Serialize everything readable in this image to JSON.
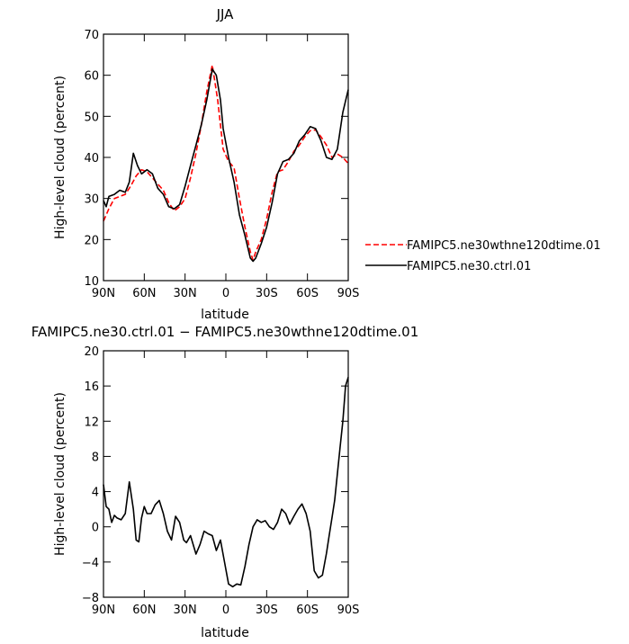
{
  "chart_data": [
    {
      "type": "line",
      "title": "JJA",
      "xlabel": "latitude",
      "ylabel": "High-level cloud (percent)",
      "xlim": [
        90,
        -90
      ],
      "ylim": [
        10,
        70
      ],
      "x_ticks": [
        90,
        60,
        30,
        0,
        -30,
        -60,
        -90
      ],
      "x_tick_labels": [
        "90N",
        "60N",
        "30N",
        "0",
        "30S",
        "60S",
        "90S"
      ],
      "y_ticks": [
        10,
        20,
        30,
        40,
        50,
        60,
        70
      ],
      "y_tick_labels": [
        "10",
        "20",
        "30",
        "40",
        "50",
        "60",
        "70"
      ],
      "grid": false,
      "legend_position": "right",
      "series": [
        {
          "name": "FAMIPC5.ne30wthne120dtime.01",
          "color": "#ff0000",
          "dash": "dashed",
          "x": [
            90,
            86,
            82,
            78,
            74,
            70,
            66,
            62,
            58,
            54,
            50,
            46,
            42,
            38,
            34,
            30,
            26,
            22,
            18,
            14,
            10,
            6,
            2,
            -2,
            -6,
            -10,
            -14,
            -18,
            -20,
            -22,
            -26,
            -30,
            -34,
            -38,
            -42,
            -46,
            -50,
            -54,
            -58,
            -62,
            -66,
            -70,
            -74,
            -78,
            -82,
            -86,
            -90
          ],
          "y": [
            24.5,
            27.5,
            30,
            30.5,
            31,
            33,
            35.5,
            37,
            36.5,
            35,
            33.5,
            32,
            29,
            27,
            28,
            30,
            35,
            41,
            48,
            56,
            62.5,
            54,
            42,
            39,
            37.5,
            30,
            23,
            17,
            15,
            17,
            20,
            25,
            31.5,
            36.5,
            37,
            39,
            41.5,
            43,
            45,
            46.5,
            46.7,
            45,
            43,
            40,
            40.8,
            40,
            38.5
          ]
        },
        {
          "name": "FAMIPC5.ne30.ctrl.01",
          "color": "#000000",
          "dash": "solid",
          "x": [
            90,
            88,
            86,
            82,
            78,
            74,
            71,
            68,
            65,
            62,
            58,
            54,
            50,
            46,
            42,
            38,
            34,
            30,
            26,
            22,
            18,
            14,
            10,
            7,
            4,
            2,
            -2,
            -6,
            -10,
            -14,
            -18,
            -20,
            -22,
            -26,
            -30,
            -34,
            -38,
            -42,
            -46,
            -50,
            -54,
            -58,
            -62,
            -66,
            -70,
            -74,
            -78,
            -82,
            -86,
            -90
          ],
          "y": [
            29.5,
            28,
            30.5,
            31,
            32,
            31.5,
            34,
            41,
            38,
            36,
            37,
            36,
            32.5,
            31,
            28,
            27.5,
            28.5,
            33,
            38,
            43,
            48,
            54,
            61.5,
            60,
            54,
            47,
            40,
            34,
            26,
            21,
            15.5,
            14.7,
            15.5,
            19,
            23,
            29,
            36,
            39,
            39.5,
            41,
            44,
            45.5,
            47.5,
            47,
            44,
            40,
            39.5,
            42,
            51,
            56.5
          ]
        }
      ]
    },
    {
      "type": "line",
      "title": "FAMIPC5.ne30.ctrl.01  −  FAMIPC5.ne30wthne120dtime.01",
      "xlabel": "latitude",
      "ylabel": "High-level cloud (percent)",
      "xlim": [
        90,
        -90
      ],
      "ylim": [
        -8,
        20
      ],
      "x_ticks": [
        90,
        60,
        30,
        0,
        -30,
        -60,
        -90
      ],
      "x_tick_labels": [
        "90N",
        "60N",
        "30N",
        "0",
        "30S",
        "60S",
        "90S"
      ],
      "y_ticks": [
        -8,
        -4,
        0,
        4,
        8,
        12,
        16,
        20
      ],
      "y_tick_labels": [
        "−8",
        "−4",
        "0",
        "4",
        "8",
        "12",
        "16",
        "20"
      ],
      "grid": false,
      "series": [
        {
          "color": "#000000",
          "dash": "solid",
          "x": [
            90,
            88,
            86,
            84,
            82,
            80,
            77,
            74,
            71,
            68,
            66,
            64,
            62,
            60,
            58,
            55,
            52,
            49,
            46,
            43,
            40,
            37,
            34,
            31,
            29,
            26,
            22,
            19,
            16,
            13,
            10,
            7,
            4,
            1,
            -2,
            -5,
            -8,
            -11,
            -14,
            -17,
            -20,
            -23,
            -26,
            -29,
            -32,
            -35,
            -38,
            -41,
            -44,
            -47,
            -50,
            -53,
            -56,
            -59,
            -62,
            -65,
            -68,
            -71,
            -74,
            -76,
            -78,
            -80,
            -82,
            -84,
            -86,
            -88,
            -90
          ],
          "y": [
            4.8,
            2.3,
            2,
            0.5,
            1.3,
            1,
            0.8,
            1.5,
            5.1,
            2,
            -1.5,
            -1.7,
            1,
            2.3,
            1.5,
            1.5,
            2.5,
            3,
            1.5,
            -0.5,
            -1.5,
            1.2,
            0.5,
            -1.5,
            -1.8,
            -1,
            -3.1,
            -2,
            -0.5,
            -0.8,
            -1,
            -2.7,
            -1.5,
            -4,
            -6.5,
            -6.8,
            -6.5,
            -6.6,
            -4.5,
            -2,
            0,
            0.8,
            0.5,
            0.7,
            0,
            -0.3,
            0.5,
            2,
            1.5,
            0.3,
            1.2,
            2,
            2.6,
            1.5,
            -0.5,
            -5,
            -5.8,
            -5.5,
            -3,
            -1,
            1,
            3,
            6,
            9,
            12,
            16,
            17
          ]
        }
      ]
    }
  ]
}
